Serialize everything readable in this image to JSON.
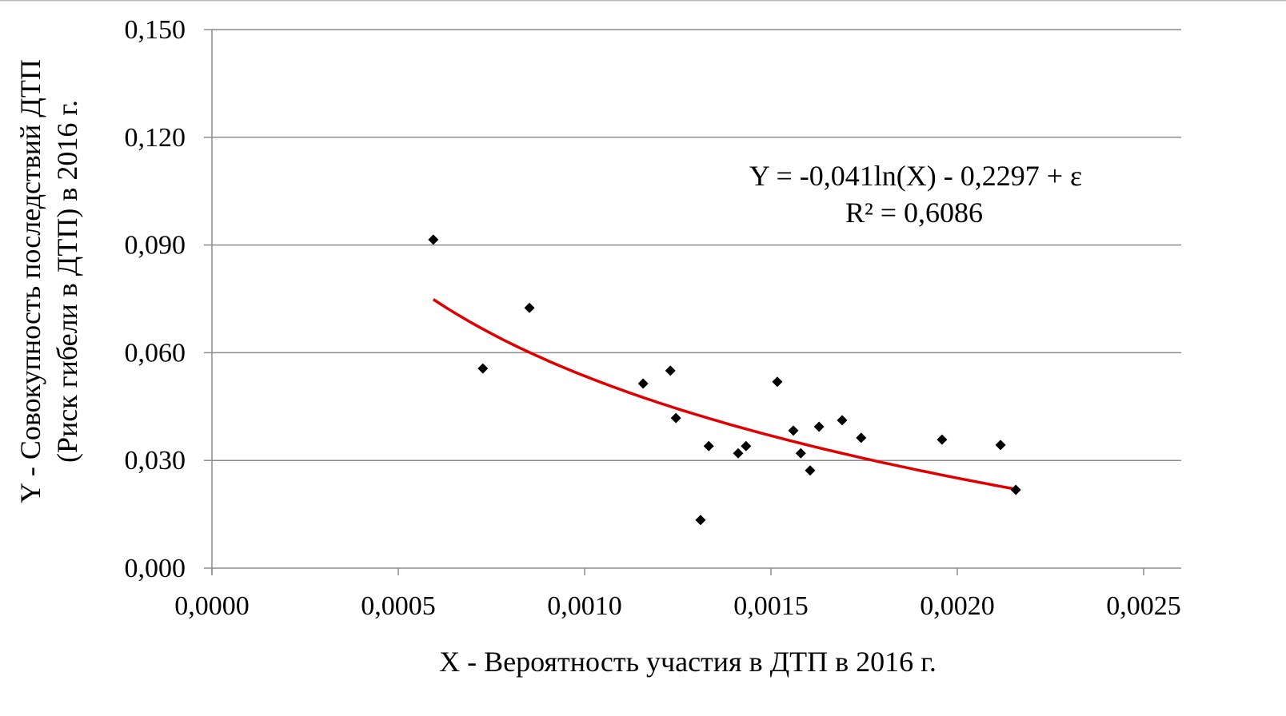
{
  "chart_data": {
    "type": "scatter",
    "title": "",
    "xlabel": "X - Вероятность участия в ДТП в 2016  г.",
    "ylabel_line1": "Y - Совокупность последствий ДТП",
    "ylabel_line2": "(Риск гибели в ДТП) в 2016 г.",
    "xlim": [
      0,
      0.0026
    ],
    "ylim": [
      0,
      0.15
    ],
    "x_ticks": [
      0,
      0.0005,
      0.001,
      0.0015,
      0.002,
      0.0025
    ],
    "x_tick_labels": [
      "0,0000",
      "0,0005",
      "0,0010",
      "0,0015",
      "0,0020",
      "0,0025"
    ],
    "y_ticks": [
      0,
      0.03,
      0.06,
      0.09,
      0.12,
      0.15
    ],
    "y_tick_labels": [
      "0,000",
      "0,030",
      "0,060",
      "0,090",
      "0,120",
      "0,150"
    ],
    "grid": "horizontal",
    "series": [
      {
        "name": "data",
        "marker": "diamond",
        "color": "#000000",
        "points": [
          [
            0.000594,
            0.0915
          ],
          [
            0.000727,
            0.0556
          ],
          [
            0.000852,
            0.0725
          ],
          [
            0.001157,
            0.0514
          ],
          [
            0.00123,
            0.055
          ],
          [
            0.001245,
            0.0418
          ],
          [
            0.001333,
            0.034
          ],
          [
            0.001311,
            0.0134
          ],
          [
            0.001412,
            0.032
          ],
          [
            0.001433,
            0.034
          ],
          [
            0.001517,
            0.0519
          ],
          [
            0.00156,
            0.0383
          ],
          [
            0.00158,
            0.032
          ],
          [
            0.001605,
            0.0272
          ],
          [
            0.001629,
            0.0394
          ],
          [
            0.001691,
            0.0412
          ],
          [
            0.001742,
            0.0363
          ],
          [
            0.001959,
            0.0358
          ],
          [
            0.002116,
            0.0343
          ],
          [
            0.002157,
            0.0218
          ]
        ]
      }
    ],
    "trendline": {
      "type": "logarithmic",
      "a": -0.041,
      "b": -0.2297,
      "x_range": [
        0.000594,
        0.002157
      ],
      "color": "#e00000"
    },
    "annotations": {
      "equation": "Y = -0,041ln(X)  - 0,2297 + ε",
      "r_squared": "R² = 0,6086"
    }
  }
}
